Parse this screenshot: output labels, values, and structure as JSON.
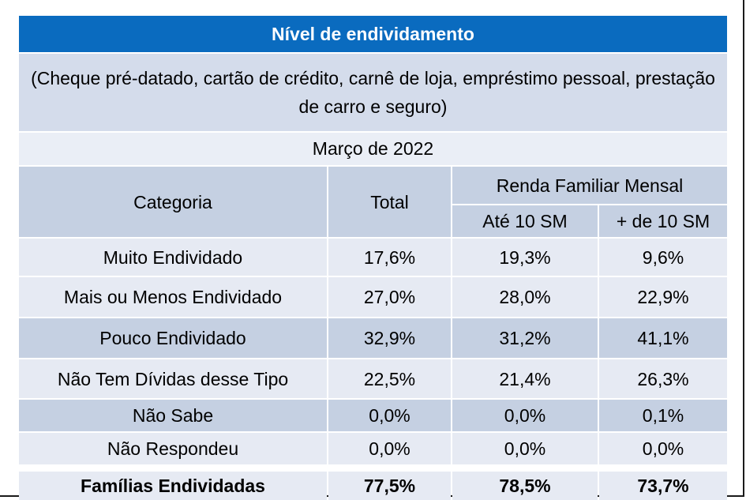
{
  "title": "Nível de endividamento",
  "subtitle": "(Cheque pré-datado, cartão de crédito, carnê de loja, empréstimo pessoal, prestação de carro e seguro)",
  "period": "Março de 2022",
  "header": {
    "categoria": "Categoria",
    "total": "Total",
    "renda": "Renda Familiar Mensal",
    "ate10": "Até 10 SM",
    "mais10": "+ de 10 SM"
  },
  "rows": [
    {
      "categoria": "Muito Endividado",
      "total": "17,6%",
      "ate10": "19,3%",
      "mais10": "9,6%"
    },
    {
      "categoria": "Mais ou Menos Endividado",
      "total": "27,0%",
      "ate10": "28,0%",
      "mais10": "22,9%"
    },
    {
      "categoria": "Pouco Endividado",
      "total": "32,9%",
      "ate10": "31,2%",
      "mais10": "41,1%"
    },
    {
      "categoria": "Não Tem Dívidas desse Tipo",
      "total": "22,5%",
      "ate10": "21,4%",
      "mais10": "26,3%"
    },
    {
      "categoria": "Não Sabe",
      "total": "0,0%",
      "ate10": "0,0%",
      "mais10": "0,1%"
    },
    {
      "categoria": "Não Respondeu",
      "total": "0,0%",
      "ate10": "0,0%",
      "mais10": "0,0%"
    }
  ],
  "footer": {
    "categoria": "Famílias Endividadas",
    "total": "77,5%",
    "ate10": "78,5%",
    "mais10": "73,7%"
  },
  "colors": {
    "banner": "#0a6bbf",
    "dark_row": "#c5d0e2",
    "light_row": "#e6eaf3",
    "subtitle_bg": "#d4dceb"
  }
}
